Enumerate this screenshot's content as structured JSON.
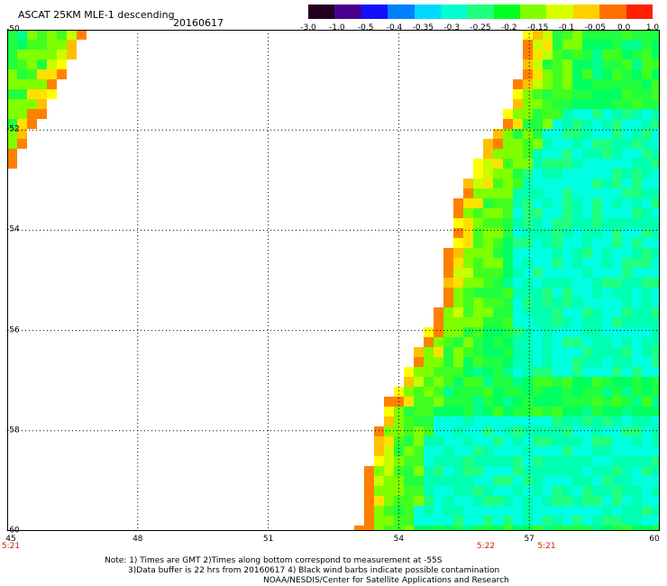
{
  "header": {
    "title": "ASCAT 25KM MLE-1 descending",
    "date": "20160617"
  },
  "colorbar": {
    "ticks": [
      "-3.0",
      "-1.0",
      "-0.5",
      "-0.4",
      "-0.35",
      "-0.3",
      "-0.25",
      "-0.2",
      "-0.15",
      "-0.1",
      "-0.05",
      "0.0",
      "1.0"
    ],
    "colors": [
      "#220022",
      "#4a0090",
      "#1010ff",
      "#0080ff",
      "#00d8ff",
      "#00ffd0",
      "#20ff80",
      "#00ff20",
      "#80ff00",
      "#d8ff00",
      "#ffd000",
      "#ff7000",
      "#ff2000"
    ]
  },
  "axes": {
    "latitudes": [
      "-50",
      "-52",
      "-54",
      "-56",
      "-58",
      "-60"
    ],
    "longitudes": [
      "45",
      "48",
      "51",
      "54",
      "57",
      "60"
    ],
    "lat_range": [
      -60,
      -50
    ],
    "lon_range": [
      45,
      60
    ]
  },
  "times": [
    {
      "label": "5:21",
      "lon": 45
    },
    {
      "label": "5:22",
      "lon": 56
    },
    {
      "label": "5:21",
      "lon": 57.4
    }
  ],
  "notes": {
    "line1": "Note: 1) Times are GMT 2)Times along bottom correspond to measurement at -55S",
    "line2": "3)Data buffer is 22 hrs from 20160617 4) Black wind barbs indicate possible contamination",
    "line3": "NOAA/NESDIS/Center for Satellite Applications and Research"
  }
}
